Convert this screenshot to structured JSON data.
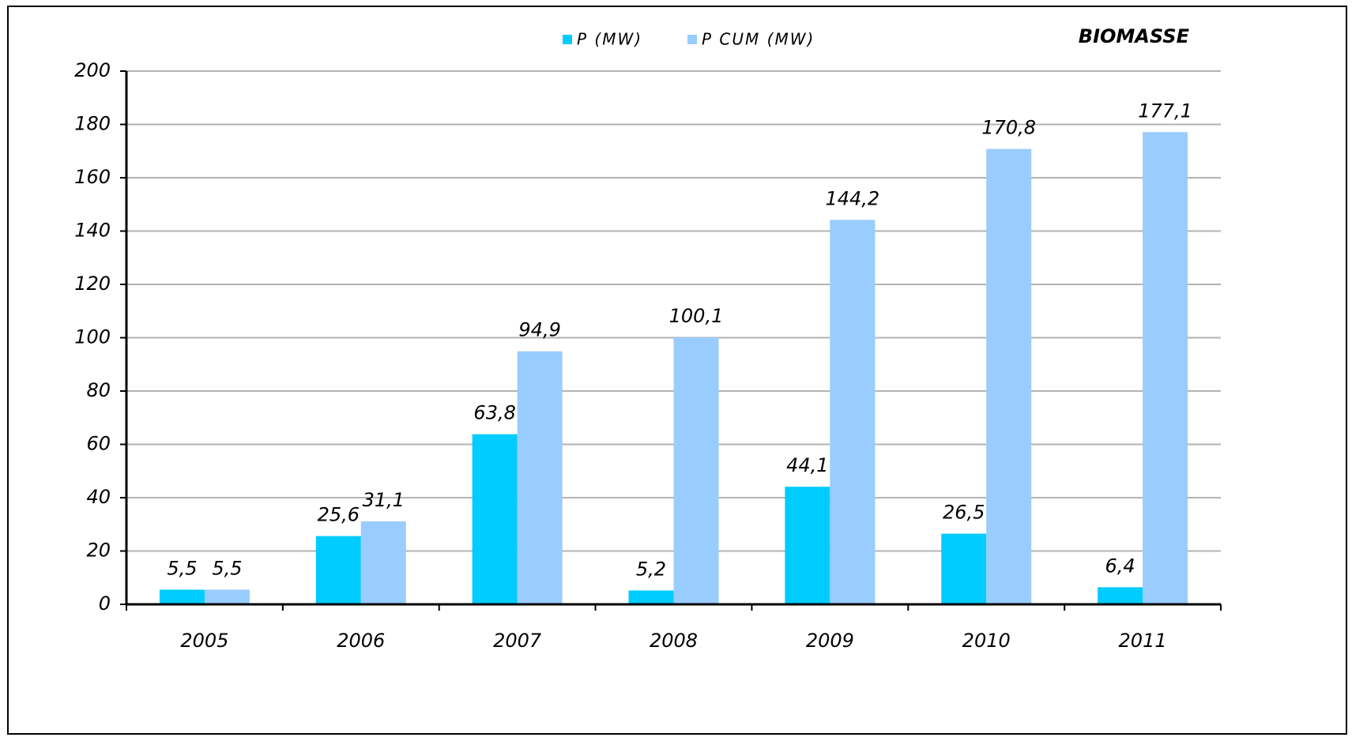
{
  "chart_data": {
    "type": "bar",
    "title": "BIOMASSE",
    "categories": [
      "2005",
      "2006",
      "2007",
      "2008",
      "2009",
      "2010",
      "2011"
    ],
    "series": [
      {
        "name": "P (MW)",
        "color": "#00ccff",
        "values": [
          5.5,
          25.6,
          63.8,
          5.2,
          44.1,
          26.5,
          6.4
        ],
        "value_labels": [
          "5,5",
          "25,6",
          "63,8",
          "5,2",
          "44,1",
          "26,5",
          "6,4"
        ]
      },
      {
        "name": "P CUM (MW)",
        "color": "#99ccff",
        "values": [
          5.5,
          31.1,
          94.9,
          100.1,
          144.2,
          170.8,
          177.1
        ],
        "value_labels": [
          "5,5",
          "31,1",
          "94,9",
          "100,1",
          "144,2",
          "170,8",
          "177,1"
        ]
      }
    ],
    "ylim": [
      0,
      200
    ],
    "yticks": [
      0,
      20,
      40,
      60,
      80,
      100,
      120,
      140,
      160,
      180,
      200
    ],
    "grid": true
  }
}
